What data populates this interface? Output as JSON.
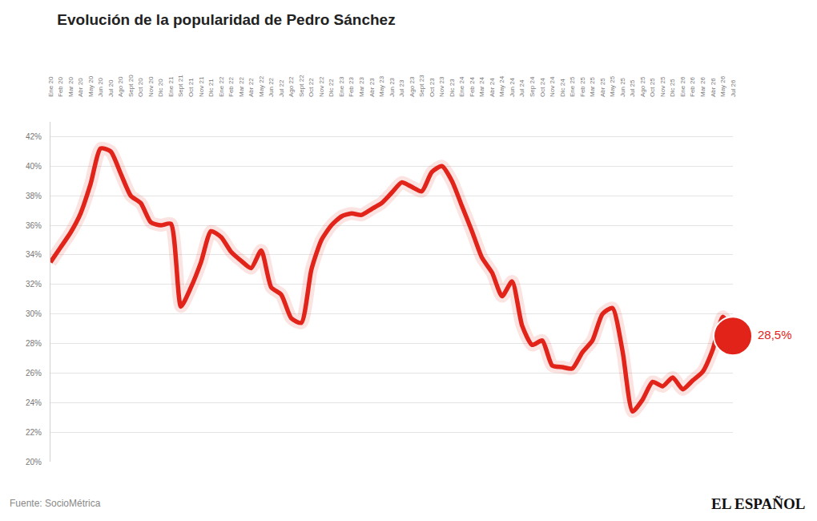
{
  "chart_data": {
    "type": "line",
    "title": "Evolución de la popularidad de Pedro Sánchez",
    "source": "Fuente: SocioMétrica",
    "brand": "EL ESPAÑOL",
    "categories": [
      "Ene 20",
      "Feb 20",
      "Mar 20",
      "Abr 20",
      "May 20",
      "Jun 20",
      "Jul 20",
      "Ago 20",
      "Sept 20",
      "Oct 20",
      "Nov 20",
      "Dic 20",
      "Ene 21",
      "Sept 21",
      "Oct 21",
      "Nov 21",
      "Dic 21",
      "Ene 22",
      "Feb 22",
      "Mar 22",
      "Abr 22",
      "May 22",
      "Jun 22",
      "Jul 22",
      "Ago 22",
      "Sept 22",
      "Oct 22",
      "Nov 22",
      "Dic 22",
      "Ene 23",
      "Feb 23",
      "Mar 23",
      "Abr 23",
      "May 23",
      "Jun 23",
      "Jul 23",
      "Ago 23",
      "Sept 23",
      "Oct 23",
      "Nov 23",
      "Dic 23",
      "Ene 24",
      "Feb 24",
      "Mar 24",
      "Abr 24",
      "May 24",
      "Jun 24",
      "Jul 24",
      "Sep 24",
      "Oct 24",
      "Nov 24",
      "Dic 24",
      "Ene 25",
      "Feb 25",
      "Mar 25",
      "Abr 25",
      "May 25",
      "Jun 25",
      "Jul 25",
      "Ago 25",
      "Oct 25",
      "Nov 25",
      "Dic 25",
      "Ene 26",
      "Feb 26",
      "Mar 26",
      "Abr 26",
      "May 26",
      "Jul 26"
    ],
    "values": [
      33.5,
      34.5,
      35.5,
      36.8,
      38.8,
      41.2,
      41.0,
      39.5,
      38.0,
      37.5,
      36.2,
      36.0,
      36.1,
      30.5,
      31.8,
      33.5,
      35.6,
      35.2,
      34.2,
      33.6,
      33.1,
      34.3,
      31.8,
      31.3,
      29.7,
      29.4,
      33.0,
      35.0,
      36.0,
      36.6,
      36.8,
      36.7,
      37.1,
      37.5,
      38.2,
      38.9,
      38.6,
      38.3,
      39.6,
      40.0,
      39.0,
      37.3,
      35.6,
      33.8,
      32.8,
      31.2,
      32.2,
      29.2,
      27.9,
      28.2,
      26.5,
      26.4,
      26.3,
      27.4,
      28.2,
      30.0,
      30.4,
      27.5,
      23.4,
      24.2,
      25.4,
      25.1,
      25.7,
      24.9,
      25.5,
      26.1,
      27.6,
      29.8,
      28.5
    ],
    "value_labels": [
      null,
      null,
      null,
      null,
      null,
      null,
      null,
      null,
      null,
      null,
      null,
      null,
      null,
      null,
      null,
      null,
      null,
      null,
      null,
      null,
      null,
      null,
      null,
      null,
      null,
      null,
      null,
      null,
      null,
      null,
      null,
      null,
      null,
      null,
      null,
      null,
      null,
      null,
      null,
      null,
      null,
      null,
      null,
      null,
      null,
      null,
      null,
      null,
      null,
      null,
      null,
      null,
      null,
      null,
      null,
      null,
      null,
      null,
      null,
      null,
      null,
      null,
      null,
      null,
      null,
      null,
      null,
      null,
      "28,5%"
    ],
    "color": "#e2231a",
    "ylim": [
      20,
      43
    ],
    "yticks": [
      {
        "value": 20,
        "label": "20%"
      },
      {
        "value": 22,
        "label": "22%"
      },
      {
        "value": 24,
        "label": "24%"
      },
      {
        "value": 26,
        "label": "26%"
      },
      {
        "value": 28,
        "label": "28%"
      },
      {
        "value": 30,
        "label": "30%"
      },
      {
        "value": 32,
        "label": "32%"
      },
      {
        "value": 34,
        "label": "34%"
      },
      {
        "value": 36,
        "label": "36%"
      },
      {
        "value": 38,
        "label": "38%"
      },
      {
        "value": 40,
        "label": "40%"
      },
      {
        "value": 42,
        "label": "42%"
      }
    ],
    "grid": true
  }
}
